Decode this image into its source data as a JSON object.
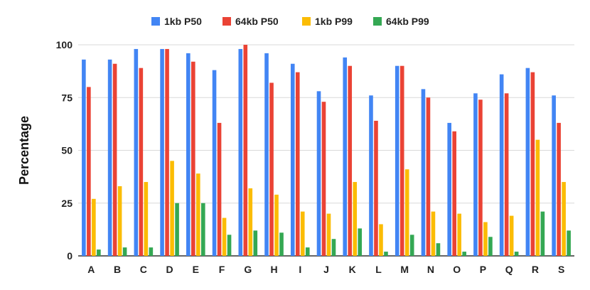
{
  "chart_data": {
    "type": "bar",
    "title": "",
    "xlabel": "",
    "ylabel": "Percentage",
    "ylim": [
      0,
      100
    ],
    "yticks": [
      0,
      25,
      50,
      75,
      100
    ],
    "grid": true,
    "legend_position": "top-center",
    "categories": [
      "A",
      "B",
      "C",
      "D",
      "E",
      "F",
      "G",
      "H",
      "I",
      "J",
      "K",
      "L",
      "M",
      "N",
      "O",
      "P",
      "Q",
      "R",
      "S"
    ],
    "series": [
      {
        "name": "1kb P50",
        "color": "#4285F4",
        "values": [
          93,
          93,
          98,
          98,
          96,
          88,
          98,
          96,
          91,
          78,
          94,
          76,
          90,
          79,
          63,
          77,
          86,
          89,
          76
        ]
      },
      {
        "name": "64kb P50",
        "color": "#EA4335",
        "values": [
          80,
          91,
          89,
          98,
          92,
          63,
          100,
          82,
          87,
          73,
          90,
          64,
          90,
          75,
          59,
          74,
          77,
          87,
          63
        ]
      },
      {
        "name": "1kb P99",
        "color": "#FBBC04",
        "values": [
          27,
          33,
          35,
          45,
          39,
          18,
          32,
          29,
          21,
          20,
          35,
          15,
          41,
          21,
          20,
          16,
          19,
          55,
          35
        ]
      },
      {
        "name": "64kb P99",
        "color": "#34A853",
        "values": [
          3,
          4,
          4,
          25,
          25,
          10,
          12,
          11,
          4,
          8,
          13,
          2,
          10,
          6,
          2,
          9,
          2,
          21,
          12
        ]
      }
    ]
  }
}
